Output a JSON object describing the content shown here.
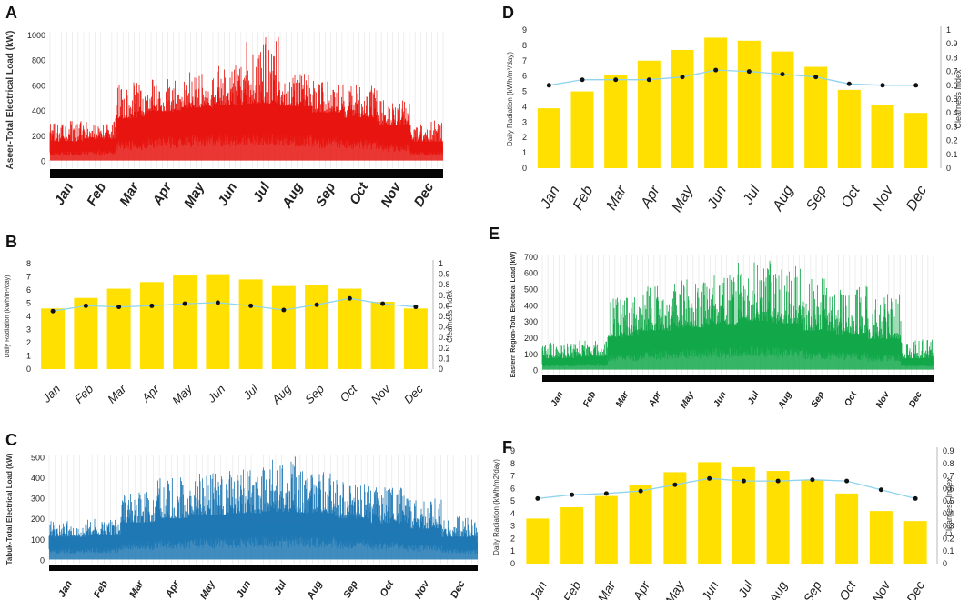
{
  "months": [
    "Jan",
    "Feb",
    "Mar",
    "Apr",
    "May",
    "Jun",
    "Jul",
    "Aug",
    "Sep",
    "Oct",
    "Nov",
    "Dec"
  ],
  "colors": {
    "A": "#e8140f",
    "C": "#1f78b4",
    "E": "#12a84a",
    "bars": "#ffe000",
    "clearness_line": "#8fd3ee",
    "dots": "#111111"
  },
  "chart_data": [
    {
      "panel": "A",
      "type": "area",
      "ylabel": "Aseer-Total Electrical Load (kW)",
      "yticks": [
        0,
        200,
        400,
        600,
        800,
        1000
      ],
      "ylim": [
        -60,
        1020
      ],
      "monthly_typical_kW": [
        150,
        170,
        330,
        390,
        420,
        440,
        450,
        430,
        380,
        340,
        280,
        150
      ],
      "monthly_peak_kW": [
        330,
        320,
        620,
        650,
        700,
        760,
        990,
        700,
        640,
        600,
        480,
        320
      ]
    },
    {
      "panel": "B",
      "type": "bar",
      "ylabel": "Daily Radiation (kWh/m²/day)",
      "y2label": "Clearness Index",
      "yticks": [
        "0",
        "1",
        "2",
        "3",
        "4",
        "5",
        "6",
        "7",
        "8"
      ],
      "y2ticks": [
        "0",
        "0.1",
        "0.2",
        "0.3",
        "0.4",
        "0.5",
        "0.6",
        "0.7",
        "0.8",
        "0.9",
        "1"
      ],
      "ylim": [
        0,
        8
      ],
      "y2lim": [
        0,
        1
      ],
      "radiation": [
        4.6,
        5.4,
        6.1,
        6.6,
        7.1,
        7.2,
        6.8,
        6.3,
        6.4,
        6.1,
        5.1,
        4.6
      ],
      "clearness": [
        0.55,
        0.6,
        0.59,
        0.6,
        0.62,
        0.63,
        0.6,
        0.56,
        0.61,
        0.67,
        0.62,
        0.59
      ]
    },
    {
      "panel": "C",
      "type": "area",
      "ylabel": "Tabuk-Total Electrical Load (kW)",
      "yticks": [
        0,
        100,
        200,
        300,
        400,
        500
      ],
      "ylim": [
        -20,
        510
      ],
      "monthly_typical_kW": [
        110,
        120,
        180,
        200,
        215,
        225,
        230,
        225,
        200,
        175,
        150,
        110
      ],
      "monthly_peak_kW": [
        190,
        200,
        330,
        400,
        420,
        440,
        500,
        430,
        390,
        360,
        300,
        210
      ]
    },
    {
      "panel": "D",
      "type": "bar",
      "ylabel": "Daily Radiation (kWh/m²/day)",
      "y2label": "Clearness Index",
      "yticks": [
        "0",
        "1",
        "2",
        "3",
        "4",
        "5",
        "6",
        "7",
        "8",
        "9"
      ],
      "y2ticks": [
        "0",
        "0.1",
        "0.2",
        "0.3",
        "0.4",
        "0.5",
        "0.6",
        "0.7",
        "0.8",
        "0.9",
        "1"
      ],
      "ylim": [
        0,
        9
      ],
      "y2lim": [
        0,
        1
      ],
      "radiation": [
        3.9,
        5.0,
        6.1,
        7.0,
        7.7,
        8.5,
        8.3,
        7.6,
        6.6,
        5.1,
        4.1,
        3.6
      ],
      "clearness": [
        0.6,
        0.64,
        0.64,
        0.64,
        0.66,
        0.71,
        0.7,
        0.68,
        0.66,
        0.61,
        0.6,
        0.6
      ]
    },
    {
      "panel": "E",
      "type": "area",
      "ylabel": "Eastern Region-Total Electrical Load (kW)",
      "yticks": [
        0,
        100,
        200,
        300,
        400,
        500,
        600,
        700
      ],
      "ylim": [
        -30,
        710
      ],
      "monthly_typical_kW": [
        70,
        80,
        200,
        240,
        260,
        280,
        300,
        285,
        240,
        220,
        190,
        70
      ],
      "monthly_peak_kW": [
        170,
        180,
        450,
        540,
        560,
        600,
        690,
        640,
        570,
        520,
        470,
        190
      ]
    },
    {
      "panel": "F",
      "type": "bar",
      "ylabel": "Daily Radiation (kWh/m2/day)",
      "y2label": "Clearness Index",
      "yticks": [
        "0",
        "1",
        "2",
        "3",
        "4",
        "5",
        "6",
        "7",
        "8",
        "9"
      ],
      "y2ticks": [
        "0",
        "0.1",
        "0.2",
        "0.3",
        "0.4",
        "0.5",
        "0.6",
        "0.7",
        "0.8",
        "0.9"
      ],
      "ylim": [
        0,
        9
      ],
      "y2lim": [
        0,
        0.9
      ],
      "radiation": [
        3.6,
        4.5,
        5.4,
        6.3,
        7.3,
        8.1,
        7.7,
        7.4,
        6.7,
        5.6,
        4.2,
        3.4
      ],
      "clearness": [
        0.52,
        0.55,
        0.56,
        0.58,
        0.63,
        0.68,
        0.66,
        0.66,
        0.67,
        0.66,
        0.59,
        0.52
      ]
    }
  ]
}
